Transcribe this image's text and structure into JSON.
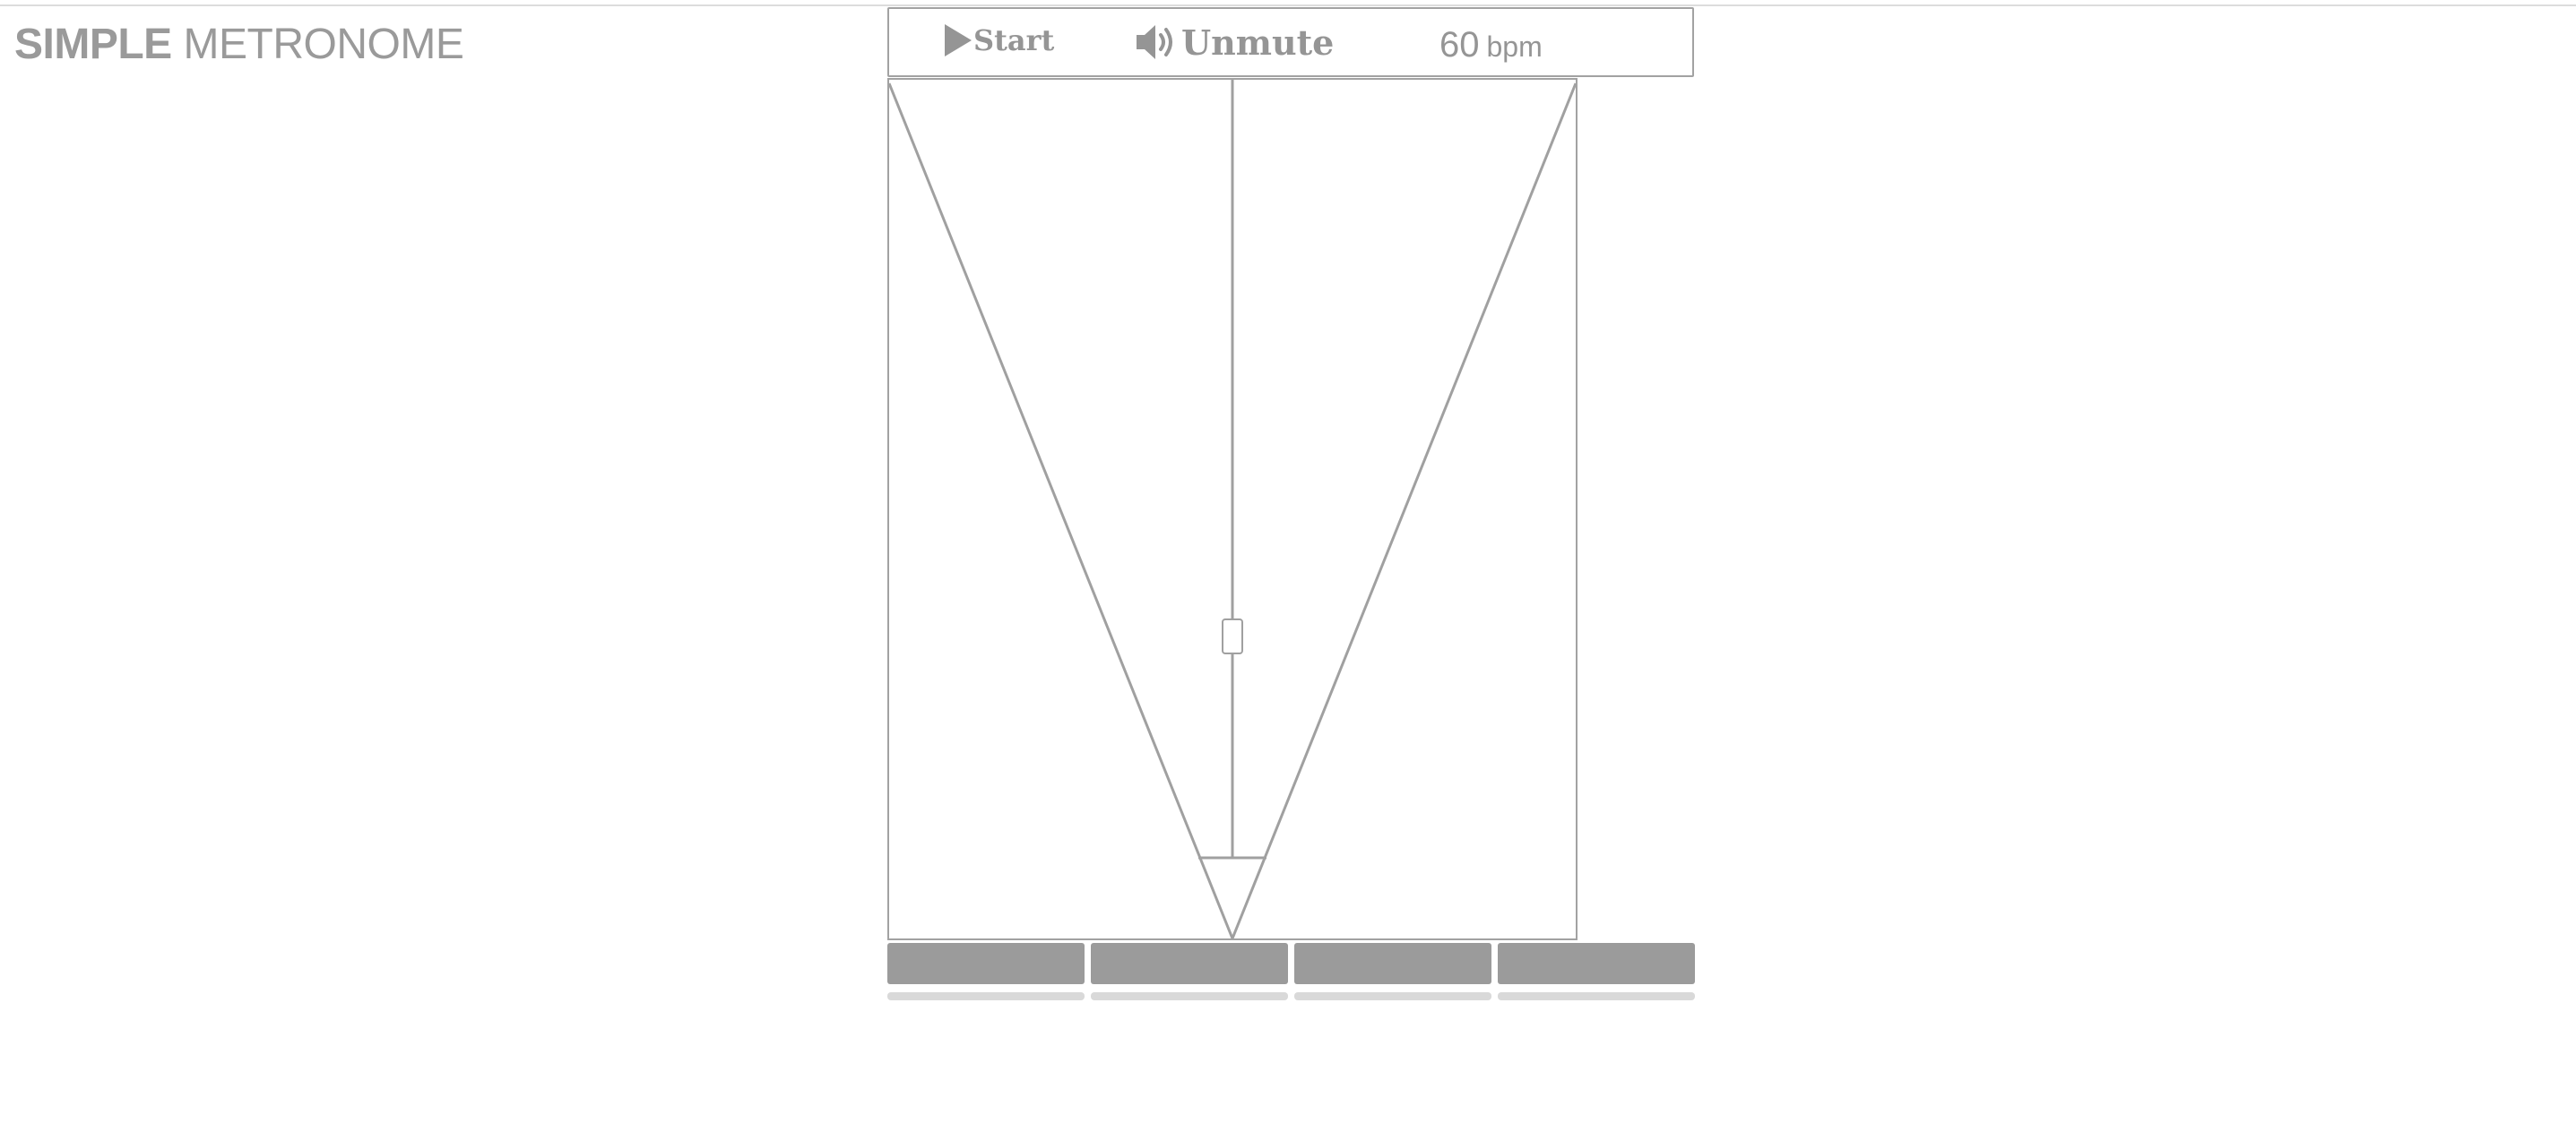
{
  "app": {
    "title_bold": "SIMPLE",
    "title_light": "METRONOME"
  },
  "controls": {
    "start_label": "Start",
    "start_icon": "play-icon",
    "mute_label": "Unmute",
    "mute_icon": "speaker-icon",
    "tempo_value": "60",
    "tempo_unit": "bpm"
  },
  "beats": [
    {
      "label": "beat 1"
    },
    {
      "label": "beat 2"
    },
    {
      "label": "beat 3"
    },
    {
      "label": "beat 4"
    }
  ],
  "colors": {
    "ui_gray": "#999999",
    "border_gray": "#a2a2a2",
    "beat_bar": "#9b9b9b",
    "beat_track": "#d9d9d9"
  }
}
